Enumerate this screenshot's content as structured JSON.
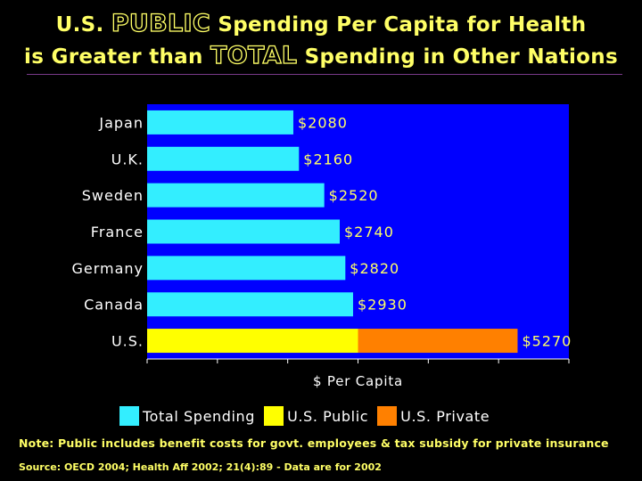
{
  "title": {
    "line1_prefix": "U.S.",
    "line1_emphasis": "PUBLIC",
    "line1_suffix": "Spending Per Capita for Health",
    "line2_prefix": "is Greater than",
    "line2_emphasis": "TOTAL",
    "line2_suffix": "Spending in Other Nations"
  },
  "colors": {
    "background": "#000000",
    "plot_background": "#0000FF",
    "total": "#33EEFF",
    "us_public": "#FFFF00",
    "us_private": "#FF8000",
    "title_text": "#FFFF66",
    "value_text": "#FFFF66"
  },
  "chart_data": {
    "type": "bar",
    "orientation": "horizontal",
    "stacked": true,
    "title": "U.S. PUBLIC Spending Per Capita for Health is Greater than TOTAL Spending in Other Nations",
    "xlabel": "$ Per Capita",
    "ylabel": "",
    "xlim": [
      0,
      6000
    ],
    "grid": false,
    "categories": [
      "Japan",
      "U.K.",
      "Sweden",
      "France",
      "Germany",
      "Canada",
      "U.S."
    ],
    "series": [
      {
        "name": "Total Spending",
        "values": [
          2080,
          2160,
          2520,
          2740,
          2820,
          2930,
          null
        ]
      },
      {
        "name": "U.S. Public",
        "values": [
          null,
          null,
          null,
          null,
          null,
          null,
          3000
        ]
      },
      {
        "name": "U.S. Private",
        "values": [
          null,
          null,
          null,
          null,
          null,
          null,
          2270
        ]
      }
    ],
    "value_labels": [
      "$2080",
      "$2160",
      "$2520",
      "$2740",
      "$2820",
      "$2930",
      "$5270"
    ],
    "legend": [
      "Total Spending",
      "U.S. Public",
      "U.S. Private"
    ],
    "legend_position": "bottom"
  },
  "note": "Note: Public includes benefit costs for govt. employees & tax subsidy for private insurance",
  "source": "Source: OECD 2004; Health Aff 2002; 21(4):89 - Data are for 2002"
}
